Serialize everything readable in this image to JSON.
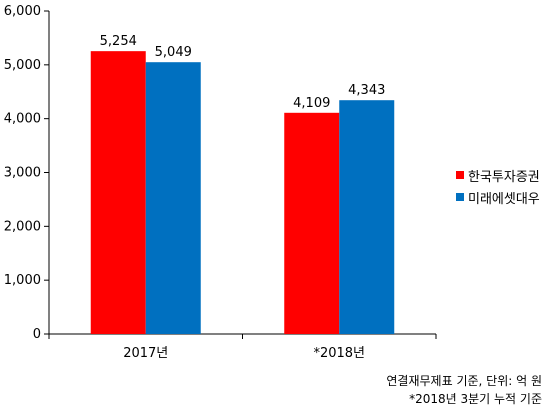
{
  "chart_data": {
    "type": "bar",
    "categories": [
      "2017년",
      "*2018년"
    ],
    "series": [
      {
        "name": "한국투자증권",
        "values": [
          5254,
          4109
        ],
        "color": "#ff0000"
      },
      {
        "name": "미래에셋대우",
        "values": [
          5049,
          4343
        ],
        "color": "#0070c0"
      }
    ],
    "data_labels": [
      [
        "5,254",
        "4,109"
      ],
      [
        "5,049",
        "4,343"
      ]
    ],
    "ylim": [
      0,
      6000
    ],
    "yticks": [
      0,
      1000,
      2000,
      3000,
      4000,
      5000,
      6000
    ],
    "ytick_labels": [
      "0",
      "1,000",
      "2,000",
      "3,000",
      "4,000",
      "5,000",
      "6,000"
    ],
    "grid": false,
    "legend_position": "right"
  },
  "notes": {
    "line1": "연결재무제표 기준, 단위: 억 원",
    "line2": "*2018년 3분기 누적 기준"
  }
}
